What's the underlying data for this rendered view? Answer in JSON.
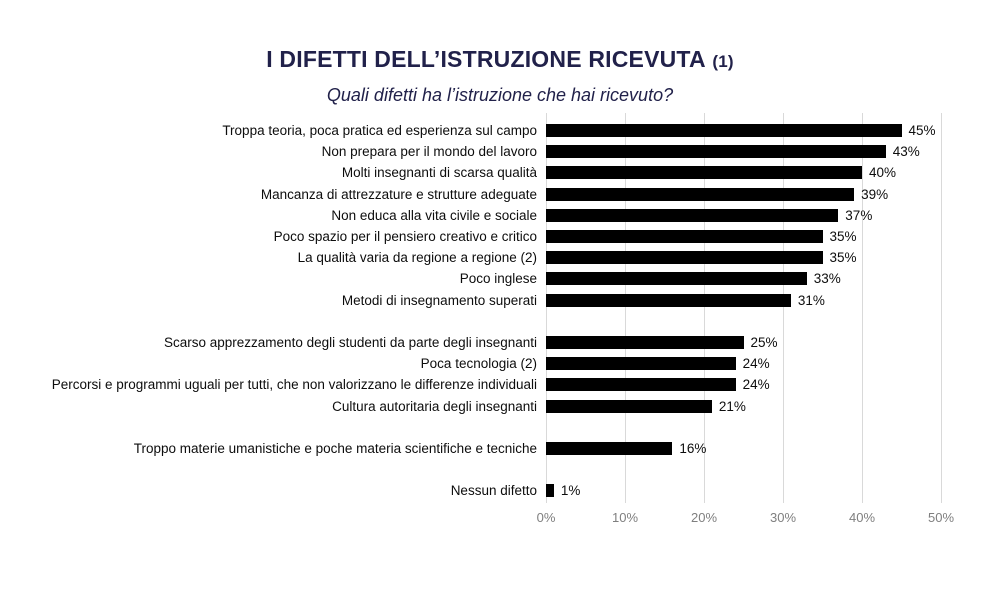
{
  "title": {
    "main": "I DIFETTI DELL’ISTRUZIONE RICEVUTA",
    "suffix": "(1)"
  },
  "subtitle": "Quali difetti ha l’istruzione che hai ricevuto?",
  "colors": {
    "title": "#21214a",
    "bar": "#000000",
    "gridline": "#d9d9d9",
    "tick_label": "#7f7f7f",
    "data_label": "#0d0d0d",
    "background": "#ffffff"
  },
  "chart_data": {
    "type": "bar",
    "orientation": "horizontal",
    "title": "I DIFETTI DELL’ISTRUZIONE RICEVUTA (1)",
    "subtitle": "Quali difetti ha l’istruzione che hai ricevuto?",
    "categories": [
      "Troppa teoria, poca pratica ed esperienza sul campo",
      "Non prepara per il mondo del lavoro",
      "Molti insegnanti di scarsa qualità",
      "Mancanza di attrezzature e strutture adeguate",
      "Non educa alla vita civile e sociale",
      "Poco spazio per il pensiero creativo e critico",
      "La qualità varia da regione a regione (2)",
      "Poco inglese",
      "Metodi di insegnamento superati",
      "Scarso apprezzamento degli studenti da parte degli insegnanti",
      "Poca tecnologia (2)",
      "Percorsi e programmi uguali per tutti, che non valorizzano le differenze individuali",
      "Cultura autoritaria degli insegnanti",
      "Troppo materie umanistiche e poche materia scientifiche e tecniche",
      "Nessun difetto"
    ],
    "values": [
      45,
      43,
      40,
      39,
      37,
      35,
      35,
      33,
      31,
      25,
      24,
      24,
      21,
      16,
      1
    ],
    "value_suffix": "%",
    "group_breaks_after": [
      8,
      12,
      13
    ],
    "xlim": [
      0,
      50
    ],
    "x_ticks": [
      "0%",
      "10%",
      "20%",
      "30%",
      "40%",
      "50%"
    ],
    "grid": true,
    "legend": "none",
    "bar_color": "#000000"
  }
}
